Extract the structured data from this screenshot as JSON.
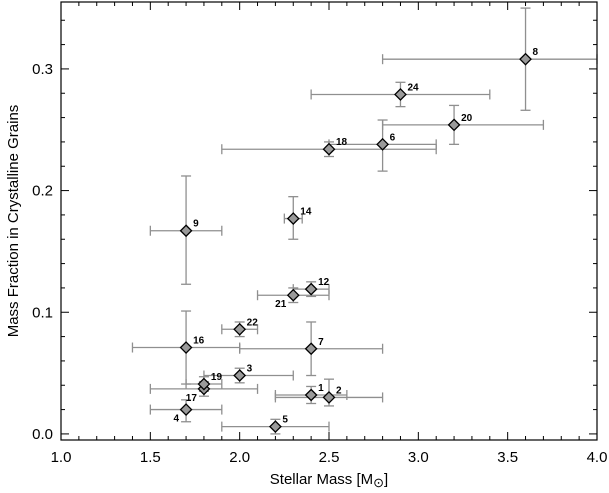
{
  "chart_data": {
    "type": "scatter",
    "title": "",
    "xlabel": "Stellar Mass [M",
    "xlabel_subscript_symbol": "⊙",
    "xlabel_close": "]",
    "ylabel": "Mass Fraction in Crystalline Grains",
    "xlim": [
      1.0,
      4.0
    ],
    "ylim": [
      -0.005,
      0.355
    ],
    "x_ticks": [
      {
        "value": 1.0,
        "label": "1.0"
      },
      {
        "value": 1.5,
        "label": "1.5"
      },
      {
        "value": 2.0,
        "label": "2.0"
      },
      {
        "value": 2.5,
        "label": "2.5"
      },
      {
        "value": 3.0,
        "label": "3.0"
      },
      {
        "value": 3.5,
        "label": "3.5"
      },
      {
        "value": 4.0,
        "label": "4.0"
      }
    ],
    "y_ticks": [
      {
        "value": 0.0,
        "label": "0.0"
      },
      {
        "value": 0.1,
        "label": "0.1"
      },
      {
        "value": 0.2,
        "label": "0.2"
      },
      {
        "value": 0.3,
        "label": "0.3"
      }
    ],
    "marker": "diamond",
    "marker_color": "#9a9a9a",
    "errorbar_color": "#8f8f8f",
    "grid": false,
    "points": [
      {
        "label": "1",
        "x": 2.4,
        "y": 0.032,
        "xerr": [
          0.2,
          0.2
        ],
        "yerr": [
          0.007,
          0.007
        ],
        "label_pos": "tr"
      },
      {
        "label": "2",
        "x": 2.5,
        "y": 0.03,
        "xerr": [
          0.3,
          0.3
        ],
        "yerr": [
          0.007,
          0.015
        ],
        "label_pos": "tr"
      },
      {
        "label": "3",
        "x": 2.0,
        "y": 0.048,
        "xerr": [
          0.2,
          0.3
        ],
        "yerr": [
          0.006,
          0.006
        ],
        "label_pos": "tr"
      },
      {
        "label": "4",
        "x": 1.7,
        "y": 0.02,
        "xerr": [
          0.2,
          0.2
        ],
        "yerr": [
          0.01,
          0.008
        ],
        "label_pos": "bl"
      },
      {
        "label": "5",
        "x": 2.2,
        "y": 0.006,
        "xerr": [
          0.3,
          0.3
        ],
        "yerr": [
          0.006,
          0.006
        ],
        "label_pos": "tr"
      },
      {
        "label": "6",
        "x": 2.8,
        "y": 0.238,
        "xerr": [
          0.3,
          0.3
        ],
        "yerr": [
          0.022,
          0.02
        ],
        "label_pos": "tr"
      },
      {
        "label": "7",
        "x": 2.4,
        "y": 0.07,
        "xerr": [
          0.4,
          0.4
        ],
        "yerr": [
          0.022,
          0.022
        ],
        "label_pos": "tr"
      },
      {
        "label": "8",
        "x": 3.6,
        "y": 0.308,
        "xerr": [
          0.8,
          0.4
        ],
        "yerr": [
          0.042,
          0.042
        ],
        "label_pos": "tr"
      },
      {
        "label": "9",
        "x": 1.7,
        "y": 0.167,
        "xerr": [
          0.2,
          0.2
        ],
        "yerr": [
          0.044,
          0.045
        ],
        "label_pos": "tr"
      },
      {
        "label": "12",
        "x": 2.4,
        "y": 0.119,
        "xerr": [
          0.1,
          0.1
        ],
        "yerr": [
          0.006,
          0.006
        ],
        "label_pos": "tr"
      },
      {
        "label": "14",
        "x": 2.3,
        "y": 0.177,
        "xerr": [
          0.05,
          0.05
        ],
        "yerr": [
          0.017,
          0.018
        ],
        "label_pos": "tr"
      },
      {
        "label": "16",
        "x": 1.7,
        "y": 0.071,
        "xerr": [
          0.3,
          0.3
        ],
        "yerr": [
          0.03,
          0.03
        ],
        "label_pos": "tr"
      },
      {
        "label": "17",
        "x": 1.8,
        "y": 0.037,
        "xerr": [
          0.3,
          0.3
        ],
        "yerr": [
          0.006,
          0.006
        ],
        "label_pos": "bl"
      },
      {
        "label": "18",
        "x": 2.5,
        "y": 0.234,
        "xerr": [
          0.6,
          0.6
        ],
        "yerr": [
          0.006,
          0.006
        ],
        "label_pos": "tr"
      },
      {
        "label": "19",
        "x": 1.8,
        "y": 0.041,
        "xerr": [
          0.1,
          0.1
        ],
        "yerr": [
          0.006,
          0.006
        ],
        "label_pos": "tr"
      },
      {
        "label": "20",
        "x": 3.2,
        "y": 0.254,
        "xerr": [
          0.4,
          0.5
        ],
        "yerr": [
          0.016,
          0.016
        ],
        "label_pos": "tr"
      },
      {
        "label": "21",
        "x": 2.3,
        "y": 0.114,
        "xerr": [
          0.2,
          0.2
        ],
        "yerr": [
          0.006,
          0.006
        ],
        "label_pos": "bl"
      },
      {
        "label": "22",
        "x": 2.0,
        "y": 0.086,
        "xerr": [
          0.1,
          0.1
        ],
        "yerr": [
          0.006,
          0.006
        ],
        "label_pos": "tr"
      },
      {
        "label": "24",
        "x": 2.9,
        "y": 0.279,
        "xerr": [
          0.5,
          0.5
        ],
        "yerr": [
          0.01,
          0.01
        ],
        "label_pos": "tr"
      }
    ]
  }
}
